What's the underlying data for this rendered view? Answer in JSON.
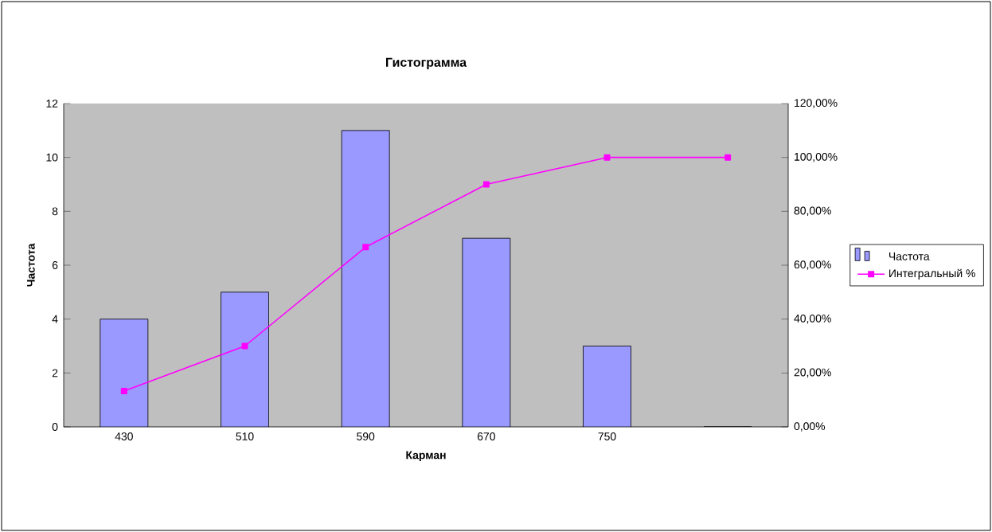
{
  "chart_data": {
    "type": "bar",
    "title": "Гистограмма",
    "xlabel": "Карман",
    "ylabel": "Частота",
    "categories": [
      "430",
      "510",
      "590",
      "670",
      "750",
      null
    ],
    "series": [
      {
        "name": "Частота",
        "color": "#9999ff",
        "values": [
          4,
          5,
          11,
          7,
          3,
          0
        ]
      },
      {
        "name": "Интегральный %",
        "color": "#ff00ff",
        "type": "line",
        "axis": "y2",
        "values": [
          13.3,
          30,
          66.7,
          90,
          100,
          100
        ]
      }
    ],
    "ylim": [
      0,
      12
    ],
    "yticks": [
      0,
      2,
      4,
      6,
      8,
      10,
      12
    ],
    "y2lim": [
      0,
      120
    ],
    "y2ticks": [
      {
        "value": 0,
        "label": "0,00%"
      },
      {
        "value": 20,
        "label": "20,00%"
      },
      {
        "value": 40,
        "label": "40,00%"
      },
      {
        "value": 60,
        "label": "60,00%"
      },
      {
        "value": 80,
        "label": "80,00%"
      },
      {
        "value": 100,
        "label": "100,00%"
      },
      {
        "value": 120,
        "label": "120,00%"
      }
    ],
    "marker": "square",
    "legend": "right"
  }
}
